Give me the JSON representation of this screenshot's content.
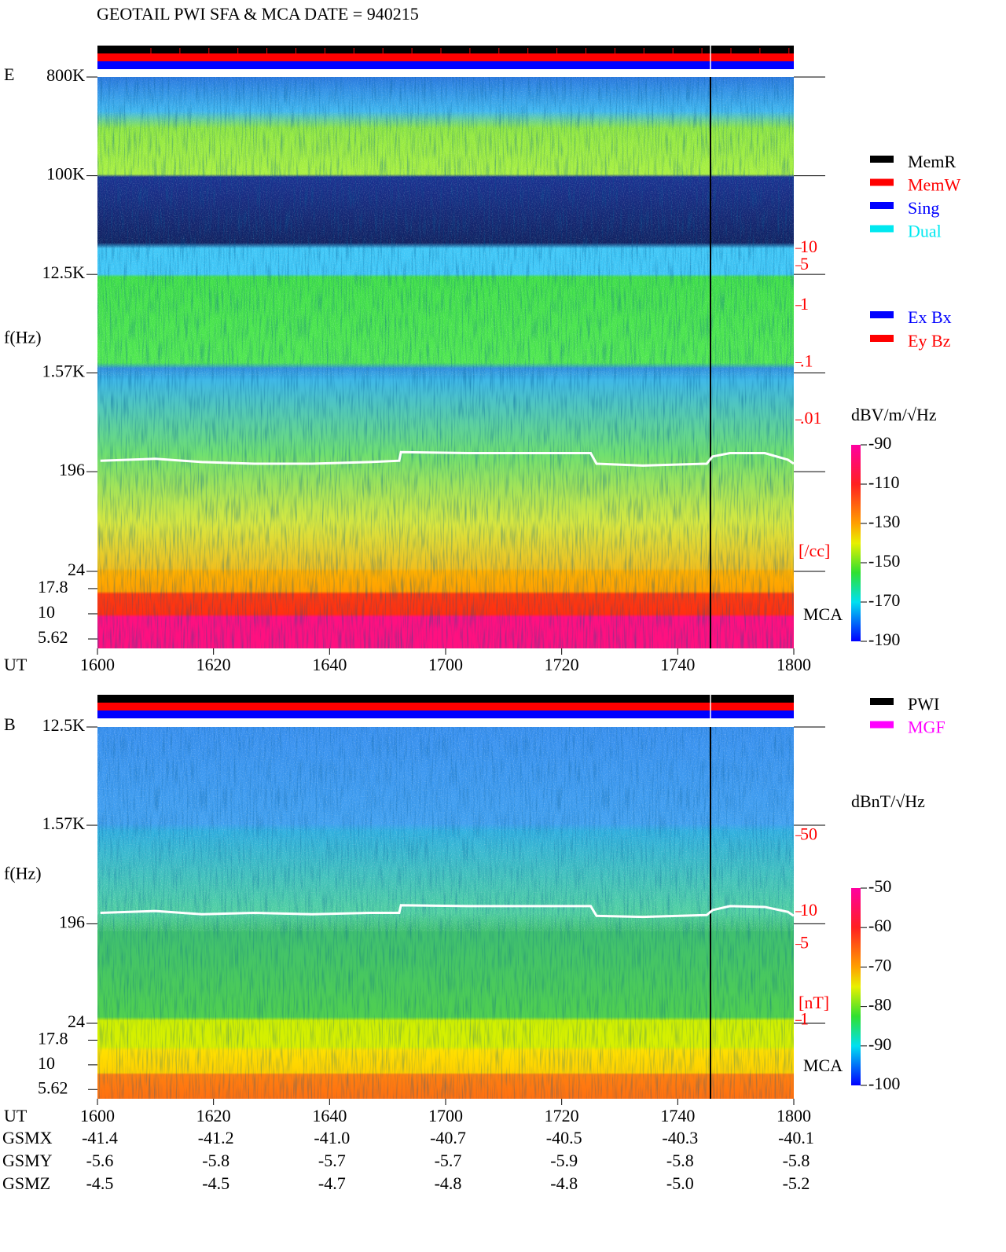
{
  "title": "GEOTAIL  PWI SFA & MCA   DATE = 940215",
  "chart_data": [
    {
      "type": "spectrogram",
      "panel_label": "E",
      "y_label": "f(Hz)",
      "x_label": "UT",
      "log_scale": true,
      "xlim": [
        960,
        1080
      ],
      "xticks": [
        {
          "value": 960,
          "label": "1600"
        },
        {
          "value": 980,
          "label": "1620"
        },
        {
          "value": 1000,
          "label": "1640"
        },
        {
          "value": 1020,
          "label": "1700"
        },
        {
          "value": 1040,
          "label": "1720"
        },
        {
          "value": 1060,
          "label": "1740"
        },
        {
          "value": 1080,
          "label": "1800"
        }
      ],
      "ylim": [
        24,
        800000
      ],
      "yticks": [
        {
          "value": 800000,
          "label": "800K"
        },
        {
          "value": 100000,
          "label": "100K"
        },
        {
          "value": 12500,
          "label": "12.5K"
        },
        {
          "value": 1570,
          "label": "1.57K"
        },
        196,
        24
      ],
      "mca_label": "MCA",
      "mca_ylim": [
        4.53,
        26.4
      ],
      "mca_yticks": [
        17.8,
        10,
        5.62
      ],
      "density_ylim": [
        1e-06,
        10000
      ],
      "density_ticks": [
        10,
        5,
        1,
        {
          "value": 0.1,
          "label": ".1"
        },
        {
          "value": 0.01,
          "label": ".01"
        }
      ],
      "density_unit": "[/cc]",
      "colorbar_label": "dBV/m/√Hz",
      "colorbar_lim": [
        -190,
        -90
      ],
      "colorbar_ticks": [
        -90,
        -110,
        -130,
        -150,
        -170,
        -190
      ],
      "legend": [
        {
          "label": "MemR",
          "color": "#000000"
        },
        {
          "label": "MemW",
          "color": "#ff0000"
        },
        {
          "label": "Sing",
          "color": "#0000ff"
        },
        {
          "label": "Dual",
          "color": "#00e8f0"
        }
      ],
      "legend2": [
        {
          "label": "Ex Bx",
          "color": "#0000ff"
        },
        {
          "label": "Ey Bz",
          "color": "#ff0000"
        }
      ],
      "trace": {
        "color": "#ffffff",
        "x": [
          960.5,
          970,
          978,
          987,
          997,
          1007,
          1012,
          1012.3,
          1024,
          1045,
          1046,
          1054,
          1065,
          1066,
          1069,
          1075,
          1079,
          1080
        ],
        "values": [
          247,
          257,
          240,
          232,
          232,
          240,
          247,
          296,
          290,
          290,
          232,
          223,
          232,
          270,
          290,
          290,
          252,
          232
        ]
      }
    },
    {
      "type": "spectrogram",
      "panel_label": "B",
      "y_label": "f(Hz)",
      "x_label": "UT",
      "log_scale": true,
      "xlim": [
        960,
        1080
      ],
      "xticks": [
        {
          "value": 960,
          "label": "1600"
        },
        {
          "value": 980,
          "label": "1620"
        },
        {
          "value": 1000,
          "label": "1640"
        },
        {
          "value": 1020,
          "label": "1700"
        },
        {
          "value": 1040,
          "label": "1720"
        },
        {
          "value": 1060,
          "label": "1740"
        },
        {
          "value": 1080,
          "label": "1800"
        }
      ],
      "ylim": [
        24,
        12500
      ],
      "yticks": [
        {
          "value": 12500,
          "label": "12.5K"
        },
        {
          "value": 1570,
          "label": "1.57K"
        },
        196,
        24
      ],
      "mca_label": "MCA",
      "mca_ylim": [
        4.53,
        26.4
      ],
      "mca_yticks": [
        17.8,
        10,
        5.62
      ],
      "density_ylim": [
        0.19,
        500
      ],
      "density_ticks": [
        50,
        10,
        5,
        1
      ],
      "density_unit": "[nT]",
      "colorbar_label": "dBnT/√Hz",
      "colorbar_lim": [
        -100,
        -50
      ],
      "colorbar_ticks": [
        -50,
        -60,
        -70,
        -80,
        -90,
        -100
      ],
      "legend": [
        {
          "label": "PWI",
          "color": "#000000"
        },
        {
          "label": "MGF",
          "color": "#ff00ff"
        }
      ],
      "legend2": [],
      "trace": {
        "color": "#ffffff",
        "x": [
          960.5,
          970,
          978,
          987,
          997,
          1007,
          1012,
          1012.3,
          1024,
          1045,
          1046,
          1054,
          1065,
          1066,
          1069,
          1075,
          1079,
          1080
        ],
        "values": [
          247,
          257,
          240,
          247,
          240,
          247,
          247,
          290,
          285,
          285,
          232,
          227,
          236,
          262,
          285,
          280,
          252,
          232
        ]
      }
    }
  ],
  "orbit": {
    "row_labels": [
      "GSMX",
      "GSMY",
      "GSMZ"
    ],
    "rows": [
      [
        "-41.4",
        "-41.2",
        "-41.0",
        "-40.7",
        "-40.5",
        "-40.3",
        "-40.1"
      ],
      [
        "-5.6",
        "-5.8",
        "-5.7",
        "-5.7",
        "-5.9",
        "-5.8",
        "-5.8"
      ],
      [
        "-4.5",
        "-4.5",
        "-4.7",
        "-4.8",
        "-4.8",
        "-5.0",
        "-5.2"
      ]
    ]
  }
}
